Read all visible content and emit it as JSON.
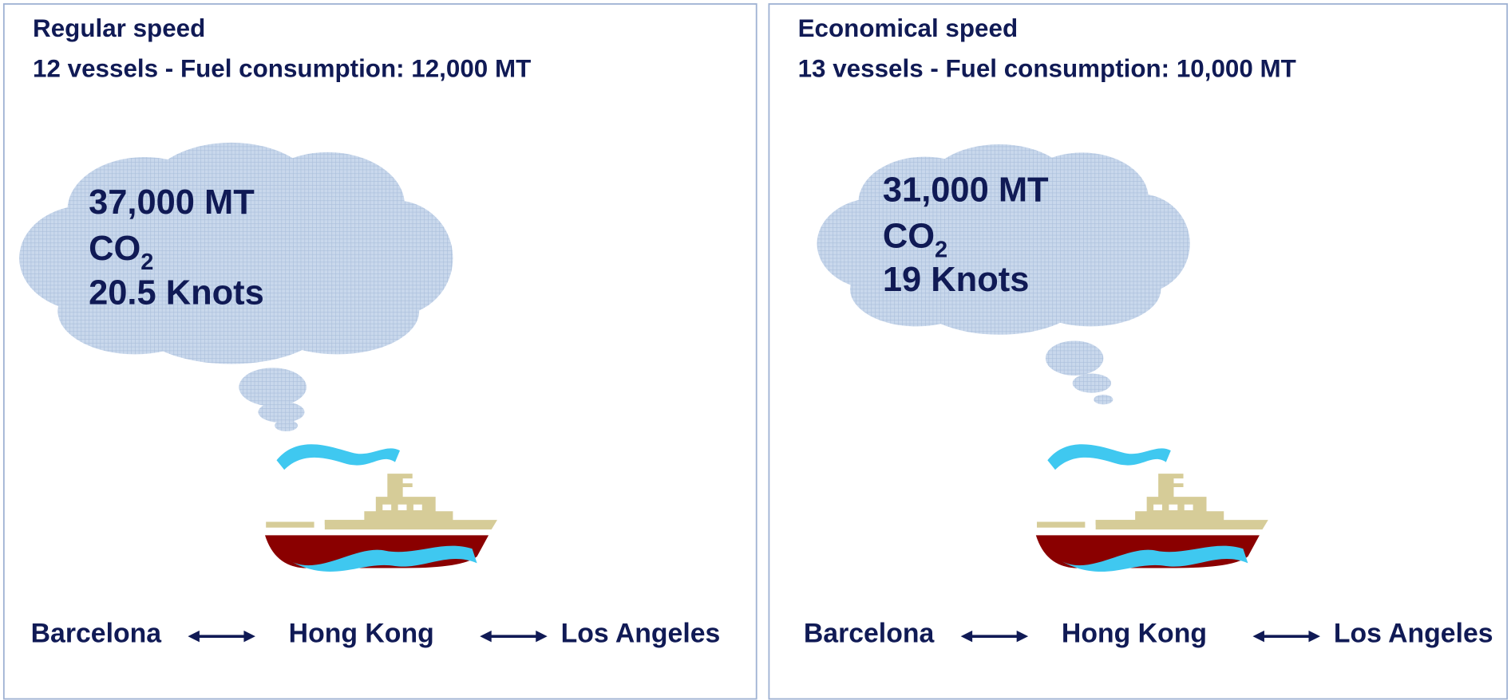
{
  "panels": [
    {
      "title": "Regular speed",
      "subtitle": "12 vessels - Fuel consumption: 12,000 MT",
      "cloud": {
        "amount": "37,000 MT",
        "gas": "CO",
        "gas_subscript": "2",
        "speed": "20.5 Knots"
      },
      "route": [
        "Barcelona",
        "Hong Kong",
        "Los Angeles"
      ]
    },
    {
      "title": "Economical speed",
      "subtitle": "13 vessels - Fuel consumption: 10,000 MT",
      "cloud": {
        "amount": "31,000 MT",
        "gas": "CO",
        "gas_subscript": "2",
        "speed": "19 Knots"
      },
      "route": [
        "Barcelona",
        "Hong Kong",
        "Los Angeles"
      ]
    }
  ]
}
